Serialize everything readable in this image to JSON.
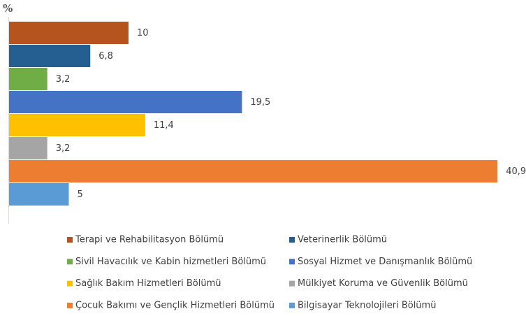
{
  "chart_data": {
    "type": "bar",
    "orientation": "horizontal",
    "y_label": "%",
    "xlim": [
      0,
      42
    ],
    "series": [
      {
        "name": "Terapi ve Rehabilitasyon Bölümü",
        "color": "#b5541c",
        "values": [
          10
        ]
      },
      {
        "name": "Veterinerlik Bölümü",
        "color": "#255e91",
        "values": [
          6.8
        ],
        "value_labels": [
          "6,8"
        ]
      },
      {
        "name": "Sivil Havacılık ve Kabin hizmetleri Bölümü",
        "color": "#70ad47",
        "values": [
          3.2
        ],
        "value_labels": [
          "3,2"
        ]
      },
      {
        "name": "Sosyal Hizmet ve Danışmanlık Bölümü",
        "color": "#4472c4",
        "values": [
          19.5
        ],
        "value_labels": [
          "19,5"
        ]
      },
      {
        "name": "Sağlık Bakım Hizmetleri Bölümü",
        "color": "#ffc000",
        "values": [
          11.4
        ],
        "value_labels": [
          "11,4"
        ]
      },
      {
        "name": "Mülkiyet Koruma ve Güvenlik Bölümü",
        "color": "#a5a5a5",
        "values": [
          3.2
        ],
        "value_labels": [
          "3,2"
        ]
      },
      {
        "name": "Çocuk Bakımı ve Gençlik Hizmetleri Bölümü",
        "color": "#ed7d31",
        "values": [
          40.9
        ],
        "value_labels": [
          "40,9"
        ]
      },
      {
        "name": "Bilgisayar Teknolojileri Bölümü",
        "color": "#5b9bd5",
        "values": [
          5
        ]
      }
    ]
  }
}
